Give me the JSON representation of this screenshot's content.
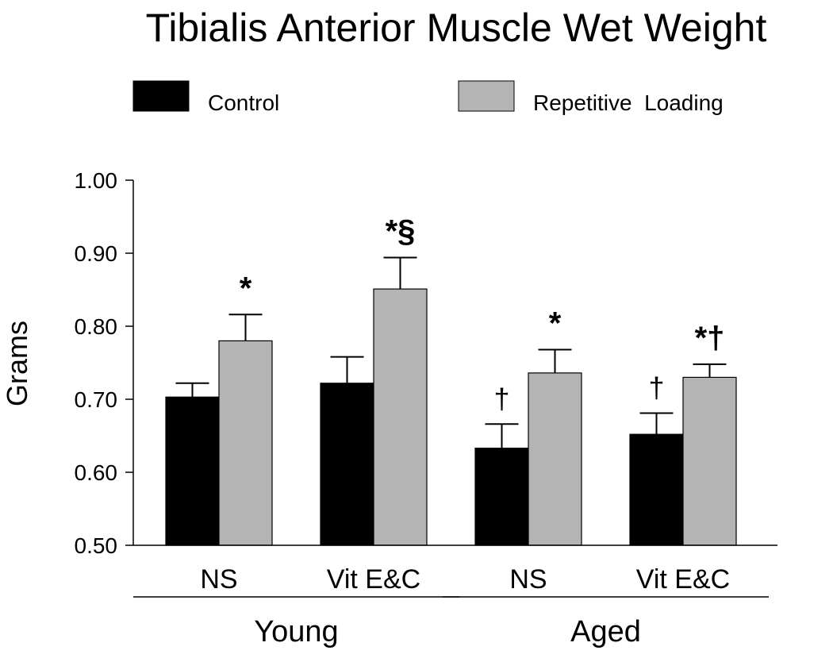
{
  "chart_data": {
    "type": "bar",
    "title": "Tibialis Anterior Muscle Wet Weight",
    "ylabel": "Grams",
    "xlabel": "",
    "ylim": [
      0.5,
      1.0
    ],
    "yticks": [
      "0.50",
      "0.60",
      "0.70",
      "0.80",
      "0.90",
      "1.00"
    ],
    "legend": [
      "Control",
      "Repetitive  Loading"
    ],
    "categories": [
      "NS",
      "Vit E&C",
      "NS",
      "Vit E&C"
    ],
    "groups": [
      {
        "label": "Young",
        "categories": [
          0,
          1
        ]
      },
      {
        "label": "Aged",
        "categories": [
          2,
          3
        ]
      }
    ],
    "series": [
      {
        "name": "Control",
        "color": "#000000",
        "values": [
          0.703,
          0.722,
          0.633,
          0.652
        ],
        "errors": [
          0.019,
          0.036,
          0.033,
          0.029
        ],
        "annotations": [
          "",
          "",
          "†",
          "†"
        ]
      },
      {
        "name": "Repetitive  Loading",
        "color": "#b4b4b4",
        "values": [
          0.78,
          0.851,
          0.736,
          0.73
        ],
        "errors": [
          0.036,
          0.043,
          0.032,
          0.018
        ],
        "annotations": [
          "*",
          "*§",
          "*",
          "*†"
        ]
      }
    ]
  }
}
